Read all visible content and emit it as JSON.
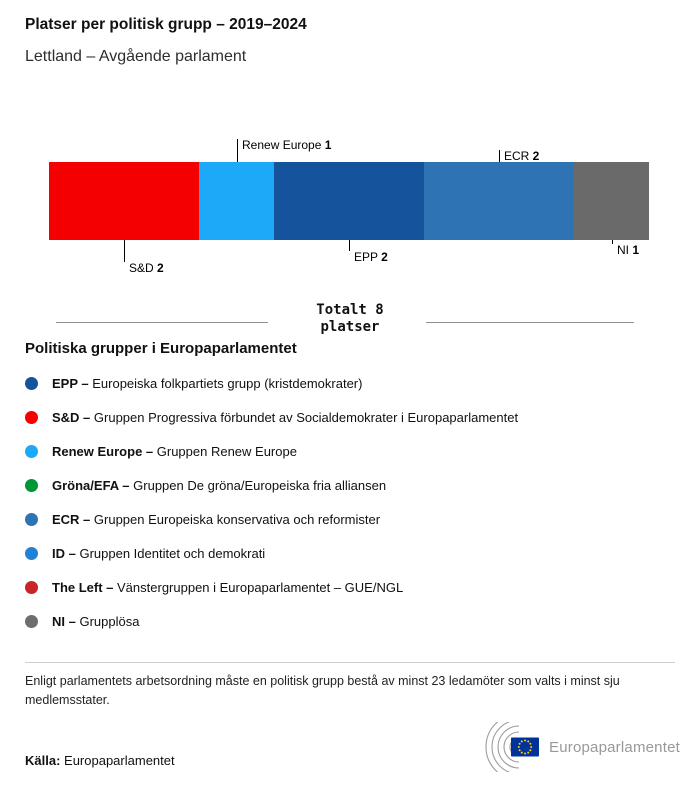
{
  "header": {
    "title": "Platser per politisk grupp – 2019–2024",
    "subtitle": "Lettland – Avgående parlament"
  },
  "chart_data": {
    "type": "bar",
    "orientation": "horizontal-stacked",
    "title": "Platser per politisk grupp – 2019–2024",
    "subtitle": "Lettland – Avgående parlament",
    "total_seats": 8,
    "total_label_line1": "Totalt 8",
    "total_label_line2": "platser",
    "segments": [
      {
        "group": "S&D",
        "seats": 2,
        "color": "#f40000",
        "side": "below",
        "tick": 22
      },
      {
        "group": "Renew Europe",
        "seats": 1,
        "color": "#1ca9f8",
        "side": "above",
        "tick": 23
      },
      {
        "group": "EPP",
        "seats": 2,
        "color": "#15549c",
        "side": "below",
        "tick": 11
      },
      {
        "group": "ECR",
        "seats": 2,
        "color": "#2e74b5",
        "side": "above",
        "tick": 12
      },
      {
        "group": "NI",
        "seats": 1,
        "color": "#6a6a6a",
        "side": "below",
        "tick": 4
      }
    ]
  },
  "legend": {
    "title": "Politiska grupper i Europaparlamentet",
    "items": [
      {
        "name": "EPP",
        "description": "Europeiska folkpartiets grupp (kristdemokrater)",
        "color": "#15549c"
      },
      {
        "name": "S&D",
        "description": "Gruppen Progressiva förbundet av Socialdemokrater i Europaparlamentet",
        "color": "#f40000"
      },
      {
        "name": "Renew Europe",
        "description": "Gruppen Renew Europe",
        "color": "#1ca9f8"
      },
      {
        "name": "Gröna/EFA",
        "description": "Gruppen De gröna/Europeiska fria alliansen",
        "color": "#009736"
      },
      {
        "name": "ECR",
        "description": "Gruppen Europeiska konservativa och reformister",
        "color": "#2e74b5"
      },
      {
        "name": "ID",
        "description": "Gruppen Identitet och demokrati",
        "color": "#1f82d2"
      },
      {
        "name": "The Left",
        "description": "Vänstergruppen i Europaparlamentet – GUE/NGL",
        "color": "#cb2428"
      },
      {
        "name": "NI",
        "description": "Grupplösa",
        "color": "#6e6e6e"
      }
    ]
  },
  "footer": {
    "note": "Enligt parlamentets arbetsordning måste en politisk grupp bestå av minst 23 ledamöter som valts i minst sju medlemsstater.",
    "source_label": "Källa:",
    "source_value": "Europaparlamentet",
    "logo_text": "Europaparlamentet"
  }
}
